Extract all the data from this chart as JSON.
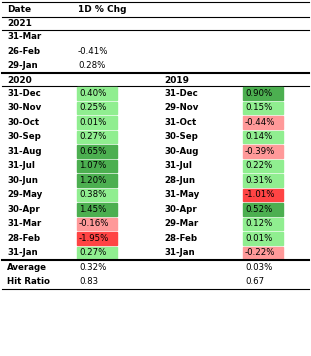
{
  "header": [
    "Date",
    "1D % Chg"
  ],
  "year2021": {
    "label": "2021",
    "rows": [
      {
        "date": "31-Mar",
        "val": null,
        "bold": false
      },
      {
        "date": "26-Feb",
        "val": -0.41,
        "bold": false
      },
      {
        "date": "29-Jan",
        "val": 0.28,
        "bold": false
      }
    ]
  },
  "year2020": {
    "label": "2020",
    "rows": [
      {
        "date": "31-Dec",
        "val": 0.4,
        "bold": false
      },
      {
        "date": "30-Nov",
        "val": 0.25,
        "bold": false
      },
      {
        "date": "30-Oct",
        "val": 0.01,
        "bold": false
      },
      {
        "date": "30-Sep",
        "val": 0.27,
        "bold": false
      },
      {
        "date": "31-Aug",
        "val": 0.65,
        "bold": false
      },
      {
        "date": "31-Jul",
        "val": 1.07,
        "bold": false
      },
      {
        "date": "30-Jun",
        "val": 1.2,
        "bold": false
      },
      {
        "date": "29-May",
        "val": 0.38,
        "bold": true
      },
      {
        "date": "30-Apr",
        "val": 1.45,
        "bold": false
      },
      {
        "date": "31-Mar",
        "val": -0.16,
        "bold": false
      },
      {
        "date": "28-Feb",
        "val": -1.95,
        "bold": true
      },
      {
        "date": "31-Jan",
        "val": 0.27,
        "bold": false
      }
    ]
  },
  "year2019": {
    "label": "2019",
    "rows": [
      {
        "date": "31-Dec",
        "val": 0.9,
        "bold": false
      },
      {
        "date": "29-Nov",
        "val": 0.15,
        "bold": false
      },
      {
        "date": "31-Oct",
        "val": -0.44,
        "bold": false
      },
      {
        "date": "30-Sep",
        "val": 0.14,
        "bold": false
      },
      {
        "date": "30-Aug",
        "val": -0.39,
        "bold": false
      },
      {
        "date": "31-Jul",
        "val": 0.22,
        "bold": false
      },
      {
        "date": "28-Jun",
        "val": 0.31,
        "bold": false
      },
      {
        "date": "31-May",
        "val": -1.01,
        "bold": true
      },
      {
        "date": "30-Apr",
        "val": 0.52,
        "bold": false
      },
      {
        "date": "29-Mar",
        "val": 0.12,
        "bold": false
      },
      {
        "date": "28-Feb",
        "val": 0.01,
        "bold": false
      },
      {
        "date": "31-Jan",
        "val": -0.22,
        "bold": false
      }
    ]
  },
  "summary": {
    "avg2020": 0.32,
    "hit2020": 0.83,
    "avg2019": 0.03,
    "hit2019": 0.67
  }
}
